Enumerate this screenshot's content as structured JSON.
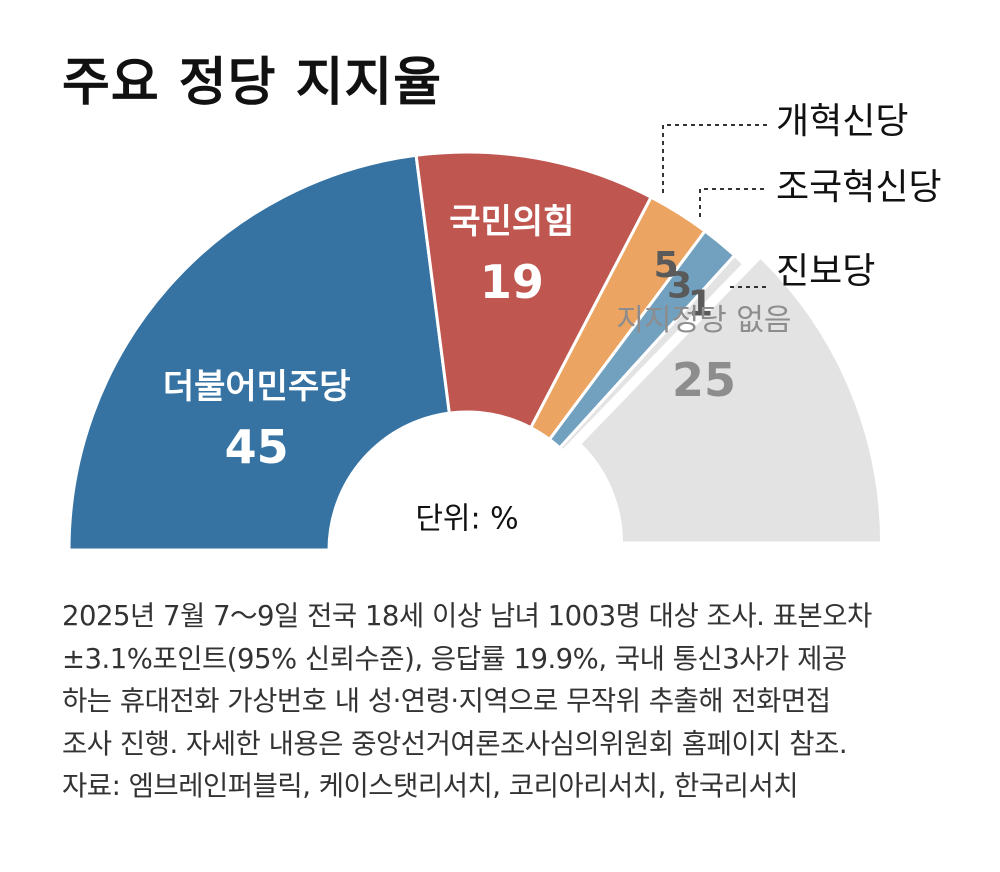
{
  "title": "주요 정당 지지율",
  "chart_data": {
    "type": "pie",
    "shape": "half-donut",
    "unit_label": "단위: %",
    "slices": [
      {
        "label": "더불어민주당",
        "value": 45,
        "color": "#3673a3",
        "label_color": "#ffffff",
        "value_color": "#ffffff",
        "label_position": "inside"
      },
      {
        "label": "국민의힘",
        "value": 19,
        "color": "#bf5650",
        "label_color": "#ffffff",
        "value_color": "#ffffff",
        "label_position": "inside"
      },
      {
        "label": "개혁신당",
        "value": 5,
        "color": "#eba462",
        "value_color": "#5a5a5a",
        "label_position": "callout"
      },
      {
        "label": "조국혁신당",
        "value": 3,
        "color": "#72a0bf",
        "value_color": "#5a5a5a",
        "label_position": "callout"
      },
      {
        "label": "진보당",
        "value": 1,
        "color": "#e3e3e3",
        "value_color": "#5a5a5a",
        "label_position": "callout"
      },
      {
        "label": "지지정당 없음",
        "value": 25,
        "color": "#e3e3e3",
        "label_color": "#8d8d8d",
        "value_color": "#8d8d8d",
        "label_position": "inside"
      }
    ]
  },
  "note": {
    "lines": [
      "2025년 7월 7～9일 전국 18세 이상 남녀 1003명 대상 조사. 표본오차",
      "±3.1%포인트(95% 신뢰수준), 응답률 19.9%, 국내 통신3사가 제공",
      "하는 휴대전화 가상번호 내 성·연령·지역으로 무작위 추출해 전화면접",
      "조사 진행. 자세한 내용은 중앙선거여론조사심의위원회 홈페이지 참조.",
      "자료: 엠브레인퍼블릭, 케이스탯리서치, 코리아리서치, 한국리서치"
    ]
  }
}
